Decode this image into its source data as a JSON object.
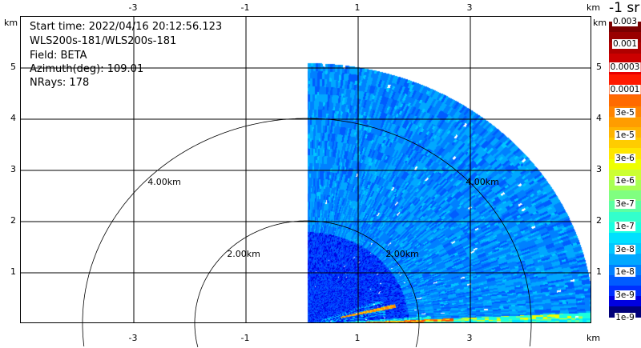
{
  "info": {
    "start_time": "Start time: 2022/04/16 20:12:56.123",
    "instrument": "WLS200s-181/WLS200s-181",
    "field": "Field: BETA",
    "azimuth": "Azimuth(deg): 109.01",
    "nrays": "NRays: 178"
  },
  "chart_data": {
    "type": "heatmap",
    "title": "",
    "x_unit": "km",
    "y_unit": "km",
    "x_ticks": [
      "-3",
      "-1",
      "1",
      "3"
    ],
    "y_ticks": [
      "5",
      "4",
      "3",
      "2",
      "1"
    ],
    "range_rings": [
      {
        "label": "2.00km",
        "radius_km": 2
      },
      {
        "label": "4.00km",
        "radius_km": 4
      }
    ],
    "max_range_km": 5.1,
    "colorbar": {
      "title": "-1 sr",
      "labels": [
        "0.003",
        "0.001",
        "0.0003",
        "0.0001",
        "3e-5",
        "1e-5",
        "3e-6",
        "1e-6",
        "3e-7",
        "1e-7",
        "3e-8",
        "1e-8",
        "3e-9",
        "1e-9"
      ],
      "colors": [
        "#7a0000",
        "#990000",
        "#b00000",
        "#cc0000",
        "#e80000",
        "#ff1a00",
        "#ff4a00",
        "#ff6a00",
        "#ff8400",
        "#ff9c00",
        "#ffb400",
        "#ffcc00",
        "#ffe600",
        "#eeff00",
        "#ccff33",
        "#a8ff55",
        "#80ff80",
        "#5cffa2",
        "#33ffcc",
        "#1affe0",
        "#00e0ff",
        "#00c8ff",
        "#00a8ff",
        "#0080ff",
        "#005cff",
        "#0030ff",
        "#0000e0",
        "#00007a"
      ]
    },
    "grid": true
  }
}
